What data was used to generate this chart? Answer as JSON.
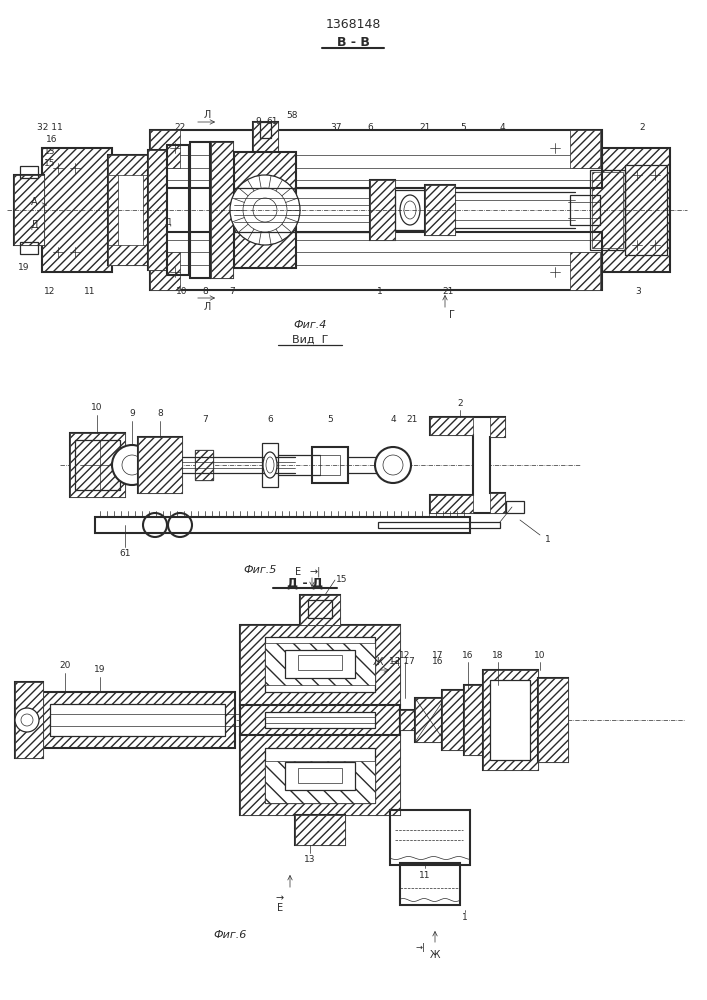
{
  "patent_number": "1368148",
  "bg_color": "#ffffff",
  "line_color": "#2a2a2a",
  "section_BB": "В - В",
  "section_DD": "Д - Д",
  "fig4_title": "Фиг.4",
  "fig4_subtitle": "Вид  Г",
  "fig5_title": "Фиг.5",
  "fig6_title": "Фиг.6"
}
